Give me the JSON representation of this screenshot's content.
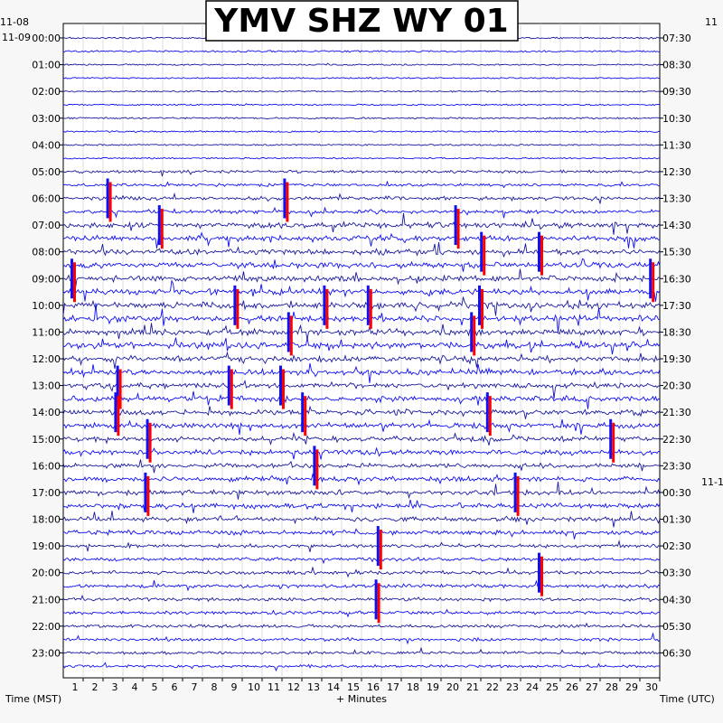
{
  "chart_data": {
    "type": "helicorder",
    "title": "YMV SHZ WY 01",
    "date_left_top": "11-08",
    "date_left": "11-09",
    "date_right_top": "11",
    "date_right_mid": "11-1",
    "left_axis_label": "Time (MST)",
    "right_axis_label": "Time (UTC)",
    "x_axis_label": "+ Minutes",
    "x_range": [
      0,
      30
    ],
    "x_ticks": [
      "1",
      "2",
      "3",
      "4",
      "5",
      "6",
      "7",
      "8",
      "9",
      "10",
      "11",
      "12",
      "13",
      "14",
      "15",
      "16",
      "17",
      "18",
      "19",
      "20",
      "21",
      "22",
      "23",
      "24",
      "25",
      "26",
      "27",
      "28",
      "29",
      "30"
    ],
    "hour_labels_left": [
      "00:00",
      "01:00",
      "02:00",
      "03:00",
      "04:00",
      "05:00",
      "06:00",
      "07:00",
      "08:00",
      "09:00",
      "10:00",
      "11:00",
      "12:00",
      "13:00",
      "14:00",
      "15:00",
      "16:00",
      "17:00",
      "18:00",
      "19:00",
      "20:00",
      "21:00",
      "22:00",
      "23:00"
    ],
    "hour_labels_right": [
      "07:30",
      "08:30",
      "09:30",
      "10:30",
      "11:30",
      "12:30",
      "13:30",
      "14:30",
      "15:30",
      "16:30",
      "17:30",
      "18:30",
      "19:30",
      "20:30",
      "21:30",
      "22:30",
      "23:30",
      "00:30",
      "01:30",
      "02:30",
      "03:30",
      "04:30",
      "05:30",
      "06:30"
    ],
    "rows_per_hour": 2,
    "trace_colors": [
      "#1a1aa0",
      "#1010f0"
    ],
    "clip_color": "#ff0000",
    "grid": true,
    "activity_by_hour": [
      0.12,
      0.06,
      0.08,
      0.1,
      0.07,
      0.35,
      0.55,
      0.9,
      0.95,
      0.95,
      1.0,
      1.0,
      0.95,
      0.9,
      0.85,
      0.8,
      0.7,
      0.75,
      0.7,
      0.45,
      0.5,
      0.45,
      0.4,
      0.35
    ],
    "clipped_events": [
      {
        "hour": 6,
        "minute": 2.3
      },
      {
        "hour": 6,
        "minute": 11.2
      },
      {
        "hour": 7,
        "minute": 4.9
      },
      {
        "hour": 7,
        "minute": 19.8
      },
      {
        "hour": 8,
        "minute": 21.1
      },
      {
        "hour": 8,
        "minute": 24.0
      },
      {
        "hour": 9,
        "minute": 0.5
      },
      {
        "hour": 9,
        "minute": 29.6
      },
      {
        "hour": 10,
        "minute": 8.7
      },
      {
        "hour": 10,
        "minute": 13.2
      },
      {
        "hour": 10,
        "minute": 15.4
      },
      {
        "hour": 10,
        "minute": 21.0
      },
      {
        "hour": 11,
        "minute": 11.4
      },
      {
        "hour": 11,
        "minute": 20.6
      },
      {
        "hour": 13,
        "minute": 2.8
      },
      {
        "hour": 13,
        "minute": 8.4
      },
      {
        "hour": 13,
        "minute": 11.0
      },
      {
        "hour": 14,
        "minute": 2.7
      },
      {
        "hour": 14,
        "minute": 12.1
      },
      {
        "hour": 14,
        "minute": 21.4
      },
      {
        "hour": 15,
        "minute": 4.3
      },
      {
        "hour": 15,
        "minute": 27.6
      },
      {
        "hour": 16,
        "minute": 12.7
      },
      {
        "hour": 17,
        "minute": 4.2
      },
      {
        "hour": 17,
        "minute": 22.8
      },
      {
        "hour": 19,
        "minute": 15.9
      },
      {
        "hour": 20,
        "minute": 24.0
      },
      {
        "hour": 21,
        "minute": 15.8
      }
    ]
  }
}
